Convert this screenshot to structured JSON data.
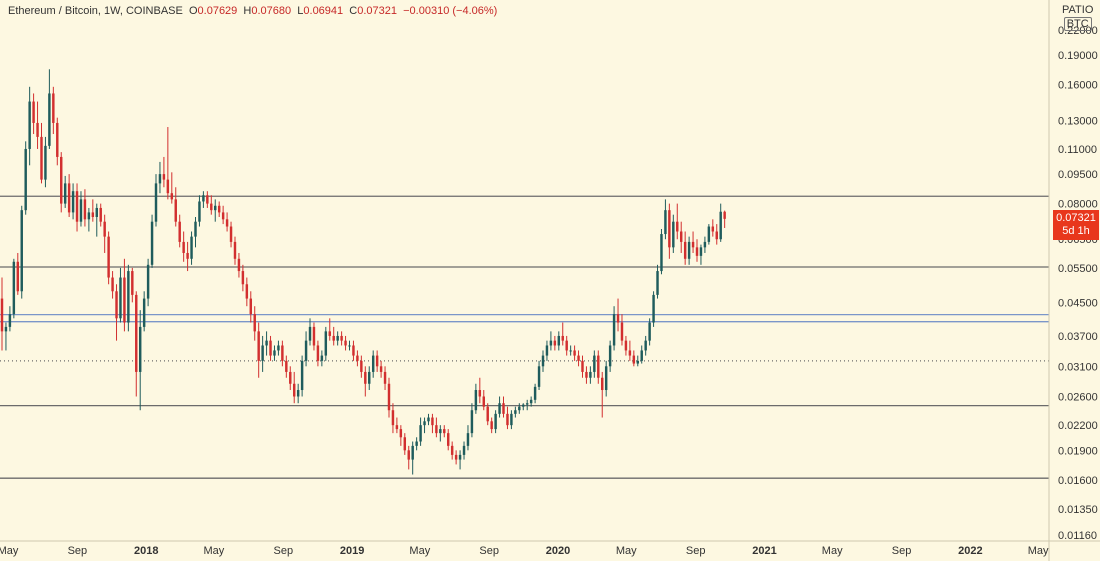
{
  "header": {
    "symbol": "Ethereum / Bitcoin, 1W, COINBASE",
    "open_label": "O",
    "open": "0.07629",
    "high_label": "H",
    "high": "0.07680",
    "low_label": "L",
    "low": "0.06941",
    "close_label": "C",
    "close": "0.07321",
    "change": "−0.00310 (−4.06%)"
  },
  "price_tag": {
    "price": "0.07321",
    "countdown": "5d 1h"
  },
  "unit": {
    "top": "ΡΑΤΙΟ",
    "currency": "BTC"
  },
  "colors": {
    "background": "#fdf8e1",
    "up": "#1f5c5c",
    "down": "#d22f2f",
    "hline": "#6b6b6b",
    "band": "#7b96c9",
    "tag": "#e8371c"
  },
  "chart_data": {
    "type": "candlestick",
    "scale": "log",
    "ylim": [
      0.0116,
      0.26
    ],
    "x_range": [
      "2017-05-01",
      "2022-05-15"
    ],
    "y_ticks": [
      "0.22000",
      "0.19000",
      "0.16000",
      "0.13000",
      "0.11000",
      "0.09500",
      "0.08000",
      "0.06500",
      "0.05500",
      "0.04500",
      "0.03700",
      "0.03100",
      "0.02600",
      "0.02200",
      "0.01900",
      "0.01600",
      "0.01350",
      "0.01160"
    ],
    "x_ticks": [
      {
        "date": "2017-05-01",
        "label": "May"
      },
      {
        "date": "2017-09-01",
        "label": "Sep"
      },
      {
        "date": "2018-01-01",
        "label": "2018",
        "year": true
      },
      {
        "date": "2018-05-01",
        "label": "May"
      },
      {
        "date": "2018-09-01",
        "label": "Sep"
      },
      {
        "date": "2019-01-01",
        "label": "2019",
        "year": true
      },
      {
        "date": "2019-05-01",
        "label": "May"
      },
      {
        "date": "2019-09-01",
        "label": "Sep"
      },
      {
        "date": "2020-01-01",
        "label": "2020",
        "year": true
      },
      {
        "date": "2020-05-01",
        "label": "May"
      },
      {
        "date": "2020-09-01",
        "label": "Sep"
      },
      {
        "date": "2021-01-01",
        "label": "2021",
        "year": true
      },
      {
        "date": "2021-05-01",
        "label": "May"
      },
      {
        "date": "2021-09-01",
        "label": "Sep"
      },
      {
        "date": "2022-01-01",
        "label": "2022",
        "year": true
      },
      {
        "date": "2022-05-01",
        "label": "May"
      }
    ],
    "horizontal_lines": [
      {
        "value": 0.0835,
        "style": "solid",
        "color": "#6b6b6b"
      },
      {
        "value": 0.0553,
        "style": "solid",
        "color": "#6b6b6b"
      },
      {
        "value": 0.0419,
        "style": "solid",
        "color": "#7b96c9"
      },
      {
        "value": 0.0402,
        "style": "solid",
        "color": "#7b96c9"
      },
      {
        "value": 0.032,
        "style": "dotted",
        "color": "#6b6b6b"
      },
      {
        "value": 0.02465,
        "style": "solid",
        "color": "#6b6b6b"
      },
      {
        "value": 0.01615,
        "style": "solid",
        "color": "#6b6b6b"
      }
    ],
    "start_date": "2017-05-01",
    "candle_interval": "1W",
    "candles": [
      [
        0.046,
        0.052,
        0.034,
        0.038
      ],
      [
        0.038,
        0.04,
        0.034,
        0.039
      ],
      [
        0.039,
        0.044,
        0.038,
        0.042
      ],
      [
        0.042,
        0.058,
        0.041,
        0.057
      ],
      [
        0.057,
        0.06,
        0.047,
        0.048
      ],
      [
        0.048,
        0.079,
        0.046,
        0.077
      ],
      [
        0.077,
        0.115,
        0.075,
        0.11
      ],
      [
        0.11,
        0.158,
        0.1,
        0.145
      ],
      [
        0.145,
        0.152,
        0.12,
        0.128
      ],
      [
        0.128,
        0.145,
        0.11,
        0.118
      ],
      [
        0.118,
        0.128,
        0.09,
        0.092
      ],
      [
        0.092,
        0.118,
        0.088,
        0.112
      ],
      [
        0.112,
        0.175,
        0.11,
        0.152
      ],
      [
        0.152,
        0.158,
        0.12,
        0.128
      ],
      [
        0.128,
        0.132,
        0.1,
        0.105
      ],
      [
        0.105,
        0.108,
        0.076,
        0.08
      ],
      [
        0.08,
        0.094,
        0.078,
        0.09
      ],
      [
        0.09,
        0.095,
        0.074,
        0.076
      ],
      [
        0.076,
        0.09,
        0.073,
        0.086
      ],
      [
        0.086,
        0.09,
        0.068,
        0.072
      ],
      [
        0.072,
        0.086,
        0.07,
        0.082
      ],
      [
        0.082,
        0.087,
        0.07,
        0.073
      ],
      [
        0.073,
        0.078,
        0.068,
        0.076
      ],
      [
        0.076,
        0.082,
        0.072,
        0.074
      ],
      [
        0.074,
        0.08,
        0.066,
        0.078
      ],
      [
        0.078,
        0.08,
        0.07,
        0.072
      ],
      [
        0.072,
        0.075,
        0.06,
        0.066
      ],
      [
        0.066,
        0.068,
        0.05,
        0.052
      ],
      [
        0.052,
        0.054,
        0.046,
        0.048
      ],
      [
        0.048,
        0.05,
        0.036,
        0.041
      ],
      [
        0.041,
        0.055,
        0.04,
        0.052
      ],
      [
        0.052,
        0.058,
        0.038,
        0.04
      ],
      [
        0.04,
        0.056,
        0.038,
        0.054
      ],
      [
        0.054,
        0.055,
        0.045,
        0.047
      ],
      [
        0.047,
        0.048,
        0.026,
        0.03
      ],
      [
        0.03,
        0.043,
        0.024,
        0.039
      ],
      [
        0.039,
        0.048,
        0.038,
        0.046
      ],
      [
        0.046,
        0.058,
        0.044,
        0.056
      ],
      [
        0.056,
        0.075,
        0.055,
        0.072
      ],
      [
        0.072,
        0.095,
        0.07,
        0.09
      ],
      [
        0.09,
        0.102,
        0.085,
        0.095
      ],
      [
        0.095,
        0.105,
        0.088,
        0.092
      ],
      [
        0.092,
        0.125,
        0.082,
        0.085
      ],
      [
        0.085,
        0.096,
        0.08,
        0.082
      ],
      [
        0.082,
        0.088,
        0.07,
        0.072
      ],
      [
        0.072,
        0.075,
        0.062,
        0.064
      ],
      [
        0.064,
        0.068,
        0.057,
        0.06
      ],
      [
        0.06,
        0.064,
        0.054,
        0.058
      ],
      [
        0.058,
        0.068,
        0.056,
        0.066
      ],
      [
        0.066,
        0.074,
        0.062,
        0.072
      ],
      [
        0.072,
        0.084,
        0.07,
        0.081
      ],
      [
        0.081,
        0.086,
        0.078,
        0.084
      ],
      [
        0.084,
        0.086,
        0.078,
        0.08
      ],
      [
        0.08,
        0.084,
        0.075,
        0.077
      ],
      [
        0.077,
        0.082,
        0.072,
        0.079
      ],
      [
        0.079,
        0.081,
        0.074,
        0.076
      ],
      [
        0.076,
        0.079,
        0.071,
        0.073
      ],
      [
        0.073,
        0.076,
        0.068,
        0.07
      ],
      [
        0.07,
        0.072,
        0.062,
        0.064
      ],
      [
        0.064,
        0.066,
        0.056,
        0.058
      ],
      [
        0.058,
        0.06,
        0.052,
        0.054
      ],
      [
        0.054,
        0.056,
        0.048,
        0.05
      ],
      [
        0.05,
        0.052,
        0.044,
        0.046
      ],
      [
        0.046,
        0.048,
        0.04,
        0.042
      ],
      [
        0.042,
        0.044,
        0.036,
        0.038
      ],
      [
        0.038,
        0.04,
        0.029,
        0.032
      ],
      [
        0.032,
        0.037,
        0.03,
        0.035
      ],
      [
        0.035,
        0.038,
        0.033,
        0.036
      ],
      [
        0.036,
        0.037,
        0.032,
        0.033
      ],
      [
        0.033,
        0.035,
        0.032,
        0.034
      ],
      [
        0.034,
        0.036,
        0.033,
        0.035
      ],
      [
        0.035,
        0.036,
        0.031,
        0.032
      ],
      [
        0.032,
        0.033,
        0.029,
        0.03
      ],
      [
        0.03,
        0.031,
        0.027,
        0.028
      ],
      [
        0.028,
        0.03,
        0.025,
        0.026
      ],
      [
        0.026,
        0.028,
        0.025,
        0.027
      ],
      [
        0.027,
        0.033,
        0.026,
        0.032
      ],
      [
        0.032,
        0.038,
        0.031,
        0.036
      ],
      [
        0.036,
        0.041,
        0.035,
        0.039
      ],
      [
        0.039,
        0.04,
        0.034,
        0.035
      ],
      [
        0.035,
        0.036,
        0.031,
        0.032
      ],
      [
        0.032,
        0.034,
        0.031,
        0.033
      ],
      [
        0.033,
        0.039,
        0.032,
        0.038
      ],
      [
        0.038,
        0.041,
        0.036,
        0.037
      ],
      [
        0.037,
        0.039,
        0.035,
        0.036
      ],
      [
        0.036,
        0.038,
        0.035,
        0.037
      ],
      [
        0.037,
        0.038,
        0.035,
        0.036
      ],
      [
        0.036,
        0.037,
        0.034,
        0.035
      ],
      [
        0.035,
        0.036,
        0.034,
        0.035
      ],
      [
        0.035,
        0.036,
        0.032,
        0.033
      ],
      [
        0.033,
        0.034,
        0.031,
        0.032
      ],
      [
        0.032,
        0.033,
        0.029,
        0.03
      ],
      [
        0.03,
        0.031,
        0.026,
        0.028
      ],
      [
        0.028,
        0.031,
        0.027,
        0.03
      ],
      [
        0.03,
        0.034,
        0.029,
        0.033
      ],
      [
        0.033,
        0.034,
        0.03,
        0.031
      ],
      [
        0.031,
        0.032,
        0.029,
        0.03
      ],
      [
        0.03,
        0.031,
        0.027,
        0.028
      ],
      [
        0.028,
        0.029,
        0.023,
        0.024
      ],
      [
        0.024,
        0.025,
        0.021,
        0.022
      ],
      [
        0.022,
        0.023,
        0.021,
        0.0215
      ],
      [
        0.0215,
        0.022,
        0.0195,
        0.0205
      ],
      [
        0.0205,
        0.021,
        0.0185,
        0.019
      ],
      [
        0.019,
        0.0195,
        0.017,
        0.018
      ],
      [
        0.018,
        0.02,
        0.0165,
        0.0195
      ],
      [
        0.0195,
        0.0205,
        0.019,
        0.02
      ],
      [
        0.02,
        0.023,
        0.0195,
        0.022
      ],
      [
        0.022,
        0.023,
        0.021,
        0.0225
      ],
      [
        0.0225,
        0.0235,
        0.022,
        0.023
      ],
      [
        0.023,
        0.0235,
        0.021,
        0.022
      ],
      [
        0.022,
        0.023,
        0.0205,
        0.021
      ],
      [
        0.021,
        0.022,
        0.02,
        0.0215
      ],
      [
        0.0215,
        0.022,
        0.0205,
        0.021
      ],
      [
        0.021,
        0.0215,
        0.019,
        0.0195
      ],
      [
        0.0195,
        0.02,
        0.018,
        0.0185
      ],
      [
        0.0185,
        0.019,
        0.0175,
        0.018
      ],
      [
        0.018,
        0.019,
        0.017,
        0.0185
      ],
      [
        0.0185,
        0.02,
        0.018,
        0.0195
      ],
      [
        0.0195,
        0.022,
        0.019,
        0.021
      ],
      [
        0.021,
        0.025,
        0.0205,
        0.024
      ],
      [
        0.024,
        0.028,
        0.0235,
        0.027
      ],
      [
        0.027,
        0.029,
        0.025,
        0.026
      ],
      [
        0.026,
        0.027,
        0.024,
        0.0245
      ],
      [
        0.0245,
        0.025,
        0.022,
        0.0225
      ],
      [
        0.0225,
        0.023,
        0.021,
        0.0215
      ],
      [
        0.0215,
        0.024,
        0.021,
        0.0235
      ],
      [
        0.0235,
        0.026,
        0.023,
        0.025
      ],
      [
        0.025,
        0.026,
        0.023,
        0.0235
      ],
      [
        0.0235,
        0.0245,
        0.0215,
        0.022
      ],
      [
        0.022,
        0.024,
        0.0215,
        0.0235
      ],
      [
        0.0235,
        0.0245,
        0.023,
        0.024
      ],
      [
        0.024,
        0.025,
        0.0235,
        0.0245
      ],
      [
        0.0245,
        0.025,
        0.024,
        0.0248
      ],
      [
        0.0248,
        0.0255,
        0.024,
        0.025
      ],
      [
        0.025,
        0.026,
        0.0245,
        0.0255
      ],
      [
        0.0255,
        0.028,
        0.025,
        0.0275
      ],
      [
        0.0275,
        0.032,
        0.027,
        0.031
      ],
      [
        0.031,
        0.034,
        0.03,
        0.033
      ],
      [
        0.033,
        0.036,
        0.032,
        0.035
      ],
      [
        0.035,
        0.038,
        0.034,
        0.036
      ],
      [
        0.036,
        0.037,
        0.034,
        0.035
      ],
      [
        0.035,
        0.038,
        0.034,
        0.037
      ],
      [
        0.037,
        0.04,
        0.035,
        0.036
      ],
      [
        0.036,
        0.037,
        0.033,
        0.034
      ],
      [
        0.034,
        0.035,
        0.033,
        0.034
      ],
      [
        0.034,
        0.035,
        0.032,
        0.033
      ],
      [
        0.033,
        0.034,
        0.031,
        0.032
      ],
      [
        0.032,
        0.033,
        0.029,
        0.03
      ],
      [
        0.03,
        0.031,
        0.028,
        0.029
      ],
      [
        0.029,
        0.031,
        0.028,
        0.03
      ],
      [
        0.03,
        0.034,
        0.029,
        0.033
      ],
      [
        0.033,
        0.034,
        0.028,
        0.029
      ],
      [
        0.029,
        0.03,
        0.023,
        0.027
      ],
      [
        0.027,
        0.032,
        0.026,
        0.031
      ],
      [
        0.031,
        0.036,
        0.03,
        0.035
      ],
      [
        0.035,
        0.044,
        0.034,
        0.042
      ],
      [
        0.042,
        0.046,
        0.038,
        0.04
      ],
      [
        0.04,
        0.042,
        0.035,
        0.036
      ],
      [
        0.036,
        0.037,
        0.033,
        0.034
      ],
      [
        0.034,
        0.036,
        0.032,
        0.033
      ],
      [
        0.033,
        0.034,
        0.031,
        0.0315
      ],
      [
        0.0315,
        0.033,
        0.031,
        0.032
      ],
      [
        0.032,
        0.035,
        0.0315,
        0.034
      ],
      [
        0.034,
        0.037,
        0.033,
        0.036
      ],
      [
        0.036,
        0.041,
        0.035,
        0.04
      ],
      [
        0.04,
        0.048,
        0.039,
        0.047
      ],
      [
        0.047,
        0.056,
        0.046,
        0.054
      ],
      [
        0.054,
        0.069,
        0.053,
        0.067
      ],
      [
        0.067,
        0.082,
        0.065,
        0.077
      ],
      [
        0.077,
        0.08,
        0.058,
        0.062
      ],
      [
        0.062,
        0.075,
        0.06,
        0.072
      ],
      [
        0.072,
        0.08,
        0.065,
        0.068
      ],
      [
        0.068,
        0.072,
        0.06,
        0.064
      ],
      [
        0.064,
        0.068,
        0.056,
        0.058
      ],
      [
        0.058,
        0.066,
        0.056,
        0.064
      ],
      [
        0.064,
        0.068,
        0.06,
        0.062
      ],
      [
        0.062,
        0.065,
        0.057,
        0.059
      ],
      [
        0.059,
        0.063,
        0.056,
        0.062
      ],
      [
        0.062,
        0.066,
        0.06,
        0.064
      ],
      [
        0.064,
        0.071,
        0.063,
        0.07
      ],
      [
        0.07,
        0.073,
        0.066,
        0.068
      ],
      [
        0.068,
        0.071,
        0.063,
        0.065
      ],
      [
        0.065,
        0.08,
        0.064,
        0.0763
      ],
      [
        0.0763,
        0.0768,
        0.0694,
        0.0732
      ]
    ]
  }
}
